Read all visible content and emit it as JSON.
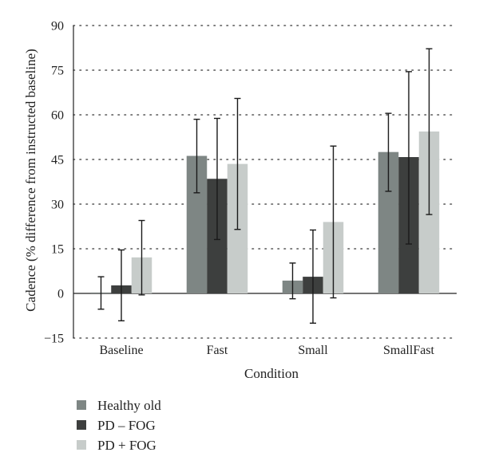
{
  "chart_data": {
    "type": "bar",
    "title": "",
    "xlabel": "Condition",
    "ylabel": "Cadence (% difference from instructed baseline)",
    "ylim": [
      -15,
      90
    ],
    "yticks": [
      -15,
      0,
      15,
      30,
      45,
      60,
      75,
      90
    ],
    "ytick_labels": [
      "−15",
      "0",
      "15",
      "30",
      "45",
      "60",
      "75",
      "90"
    ],
    "grid": "dotted horizontal",
    "legend_position": "bottom-left",
    "categories": [
      "Baseline",
      "Fast",
      "Small",
      "SmallFast"
    ],
    "series": [
      {
        "name": "Healthy old",
        "color": "#7e8684",
        "values": [
          0.3,
          46.2,
          4.3,
          47.5
        ],
        "error_low": [
          -5.3,
          33.8,
          -1.8,
          34.3
        ],
        "error_high": [
          5.6,
          58.5,
          10.2,
          60.5
        ]
      },
      {
        "name": "PD – FOG",
        "color": "#3d3f3e",
        "values": [
          2.7,
          38.5,
          5.6,
          45.8
        ],
        "error_low": [
          -9.2,
          18.1,
          -10.0,
          16.6
        ],
        "error_high": [
          14.6,
          58.8,
          21.3,
          74.5
        ]
      },
      {
        "name": "PD + FOG",
        "color": "#c7ccca",
        "values": [
          12.1,
          43.5,
          24.0,
          54.4
        ],
        "error_low": [
          -0.5,
          21.5,
          -1.5,
          26.5
        ],
        "error_high": [
          24.5,
          65.5,
          49.5,
          82.2
        ]
      }
    ]
  }
}
